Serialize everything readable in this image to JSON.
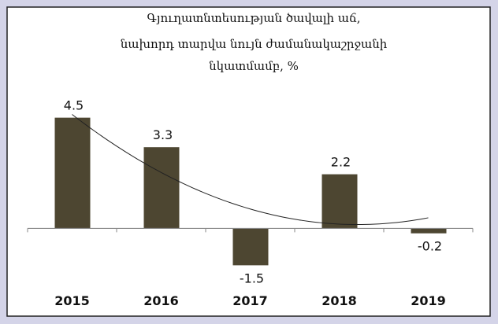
{
  "chart_data": {
    "type": "bar",
    "title": [
      "Գյուղատնտեսության ծավալի աճ,",
      "նախորդ տարվա նույն ժամանակաշրջանի",
      "նկատմամբ, %"
    ],
    "categories": [
      "2015",
      "2016",
      "2017",
      "2018",
      "2019"
    ],
    "values": [
      4.5,
      3.3,
      -1.5,
      2.2,
      -0.2
    ],
    "color": "#4d4631",
    "ylim": [
      -2,
      5
    ],
    "trendline": "polynomial",
    "trendline_order": 2
  }
}
